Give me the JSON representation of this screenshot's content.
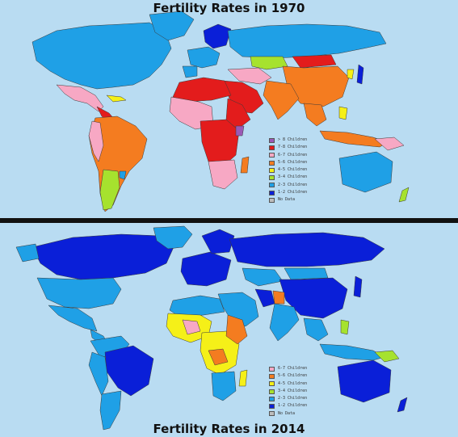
{
  "maps": [
    {
      "title": "Fertility Rates in 1970",
      "legend": [
        {
          "label": "> 8 Children",
          "color": "#9b59b6"
        },
        {
          "label": "7-8 Children",
          "color": "#e31c1c"
        },
        {
          "label": "6-7 Children",
          "color": "#f7a8c4"
        },
        {
          "label": "5-6 Children",
          "color": "#f47c20"
        },
        {
          "label": "4-5 Children",
          "color": "#f5f018"
        },
        {
          "label": "3-4 Children",
          "color": "#a6e22e"
        },
        {
          "label": "2-3 Children",
          "color": "#1fa0e6"
        },
        {
          "label": "1-2 Children",
          "color": "#0a1fd8"
        },
        {
          "label": "No Data",
          "color": "#bdbdbd"
        }
      ]
    },
    {
      "title": "Fertility Rates in 2014",
      "legend": [
        {
          "label": "6-7 Children",
          "color": "#f7a8c4"
        },
        {
          "label": "5-6 Children",
          "color": "#f47c20"
        },
        {
          "label": "4-5 Children",
          "color": "#f5f018"
        },
        {
          "label": "3-4 Children",
          "color": "#a6e22e"
        },
        {
          "label": "2-3 Children",
          "color": "#1fa0e6"
        },
        {
          "label": "1-2 Children",
          "color": "#0a1fd8"
        },
        {
          "label": "No Data",
          "color": "#bdbdbd"
        }
      ]
    }
  ],
  "colors": {
    "ocean": "#b9dcf2",
    "divider": "#111111"
  }
}
